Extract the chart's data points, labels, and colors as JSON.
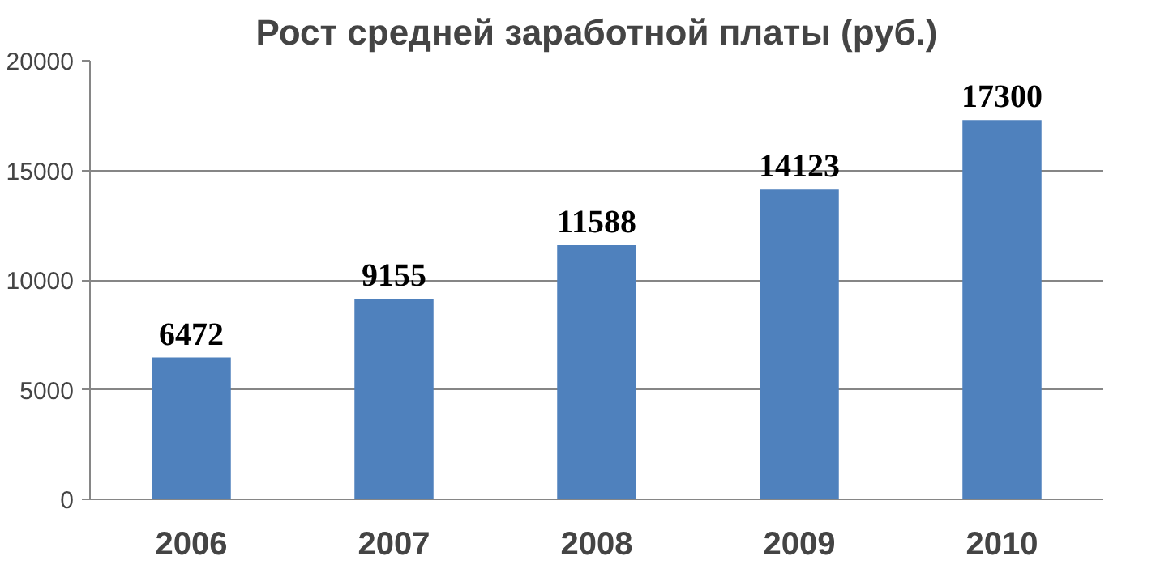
{
  "chart_data": {
    "type": "bar",
    "title": "Рост средней заработной платы (руб.)",
    "categories": [
      "2006",
      "2007",
      "2008",
      "2009",
      "2010"
    ],
    "values": [
      6472,
      9155,
      11588,
      14123,
      17300
    ],
    "color": "#4f81bd",
    "ylim": [
      0,
      20000
    ],
    "yticks": [
      0,
      5000,
      10000,
      15000,
      20000
    ],
    "grid": "y",
    "data_labels": true
  }
}
